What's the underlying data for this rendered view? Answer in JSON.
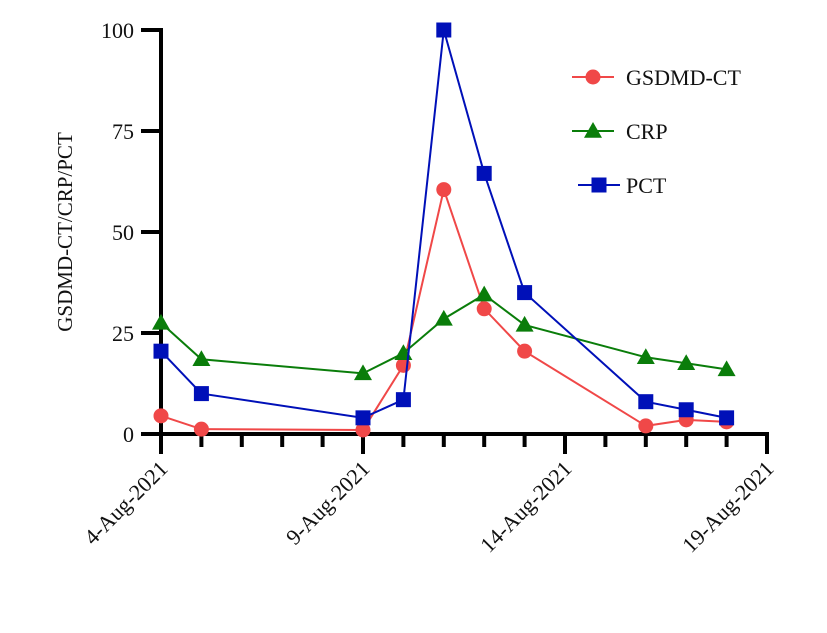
{
  "chart_data": {
    "type": "line",
    "title": "",
    "xlabel": "",
    "ylabel": "GSDMD-CT/CRP/PCT",
    "ylim": [
      0,
      100
    ],
    "yticks": [
      0,
      25,
      50,
      75,
      100
    ],
    "xlim_days": [
      0,
      15
    ],
    "x_start_date": "4-Aug-2021",
    "xticks": [
      {
        "day": 0,
        "label": "4-Aug-2021"
      },
      {
        "day": 5,
        "label": "9-Aug-2021"
      },
      {
        "day": 10,
        "label": "14-Aug-2021"
      },
      {
        "day": 15,
        "label": "19-Aug-2021"
      }
    ],
    "minor_tick_interval_days": 1,
    "grid": false,
    "legend_position": "top-right",
    "series": [
      {
        "name": "GSDMD-CT",
        "color": "#f04848",
        "marker": "circle",
        "x_days": [
          0,
          1,
          5,
          6,
          7,
          8,
          9,
          12,
          13,
          14
        ],
        "values": [
          4.5,
          1.2,
          1.0,
          17,
          60.5,
          31,
          20.5,
          2,
          3.5,
          3
        ]
      },
      {
        "name": "CRP",
        "color": "#0a7d0a",
        "marker": "triangle",
        "x_days": [
          0,
          1,
          5,
          6,
          7,
          8,
          9,
          12,
          13,
          14
        ],
        "values": [
          27.5,
          18.5,
          15,
          20,
          28.5,
          34.5,
          27,
          19,
          17.5,
          16
        ]
      },
      {
        "name": "PCT",
        "color": "#0010b8",
        "marker": "square",
        "x_days": [
          0,
          1,
          5,
          6,
          7,
          8,
          9,
          12,
          13,
          14
        ],
        "values": [
          20.5,
          10,
          4,
          8.5,
          100,
          64.5,
          35,
          8,
          6,
          4
        ]
      }
    ]
  }
}
